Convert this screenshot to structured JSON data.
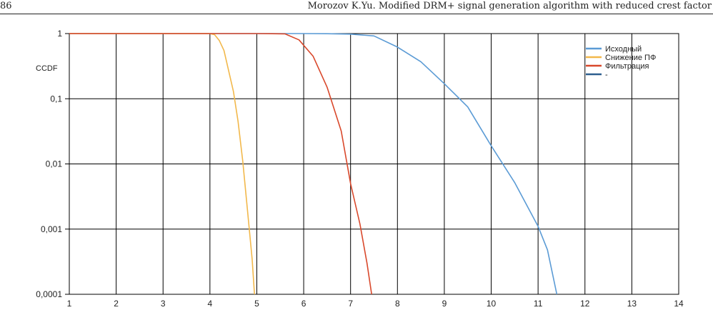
{
  "header": {
    "page_number": "86",
    "running_title": "Morozov K.Yu. Modified DRM+ signal generation algorithm with reduced crest factor"
  },
  "chart_data": {
    "type": "line",
    "title": "",
    "xlabel": "",
    "ylabel": "CCDF",
    "xlim": [
      1,
      14
    ],
    "ylim": [
      0.0001,
      1
    ],
    "yscale": "log",
    "grid": true,
    "legend_position": "top-right",
    "x_ticks": [
      "1",
      "2",
      "3",
      "4",
      "5",
      "6",
      "7",
      "8",
      "9",
      "10",
      "11",
      "12",
      "13",
      "14"
    ],
    "y_ticks": [
      "1",
      "0,1",
      "0,01",
      "0,001",
      "0,0001"
    ],
    "y_tick_values": [
      1,
      0.1,
      0.01,
      0.001,
      0.0001
    ],
    "series": [
      {
        "name": "Исходный",
        "color": "#5b9bd5",
        "points": [
          [
            1,
            1
          ],
          [
            5,
            1
          ],
          [
            6,
            1
          ],
          [
            6.5,
            0.995
          ],
          [
            7,
            0.98
          ],
          [
            7.5,
            0.92
          ],
          [
            8,
            0.62
          ],
          [
            8.5,
            0.37
          ],
          [
            9,
            0.17
          ],
          [
            9.5,
            0.075
          ],
          [
            10,
            0.019
          ],
          [
            10.5,
            0.0052
          ],
          [
            11,
            0.0011
          ],
          [
            11.2,
            0.00048
          ],
          [
            11.4,
            0.0001
          ]
        ]
      },
      {
        "name": "Снижение ПФ",
        "color": "#f2b84b",
        "points": [
          [
            1,
            1
          ],
          [
            4,
            1
          ],
          [
            4.1,
            0.96
          ],
          [
            4.2,
            0.78
          ],
          [
            4.3,
            0.55
          ],
          [
            4.5,
            0.13
          ],
          [
            4.6,
            0.045
          ],
          [
            4.7,
            0.011
          ],
          [
            4.8,
            0.002
          ],
          [
            4.9,
            0.00035
          ],
          [
            4.95,
            0.0001
          ]
        ]
      },
      {
        "name": "Фильтрация",
        "color": "#d9482b",
        "points": [
          [
            1,
            1
          ],
          [
            5,
            1
          ],
          [
            5.6,
            0.99
          ],
          [
            5.9,
            0.8
          ],
          [
            6.2,
            0.45
          ],
          [
            6.5,
            0.15
          ],
          [
            6.8,
            0.032
          ],
          [
            7,
            0.005
          ],
          [
            7.2,
            0.0012
          ],
          [
            7.35,
            0.0003
          ],
          [
            7.45,
            0.0001
          ]
        ]
      },
      {
        "name": "-",
        "color": "#2e5f8f",
        "points": []
      }
    ]
  }
}
